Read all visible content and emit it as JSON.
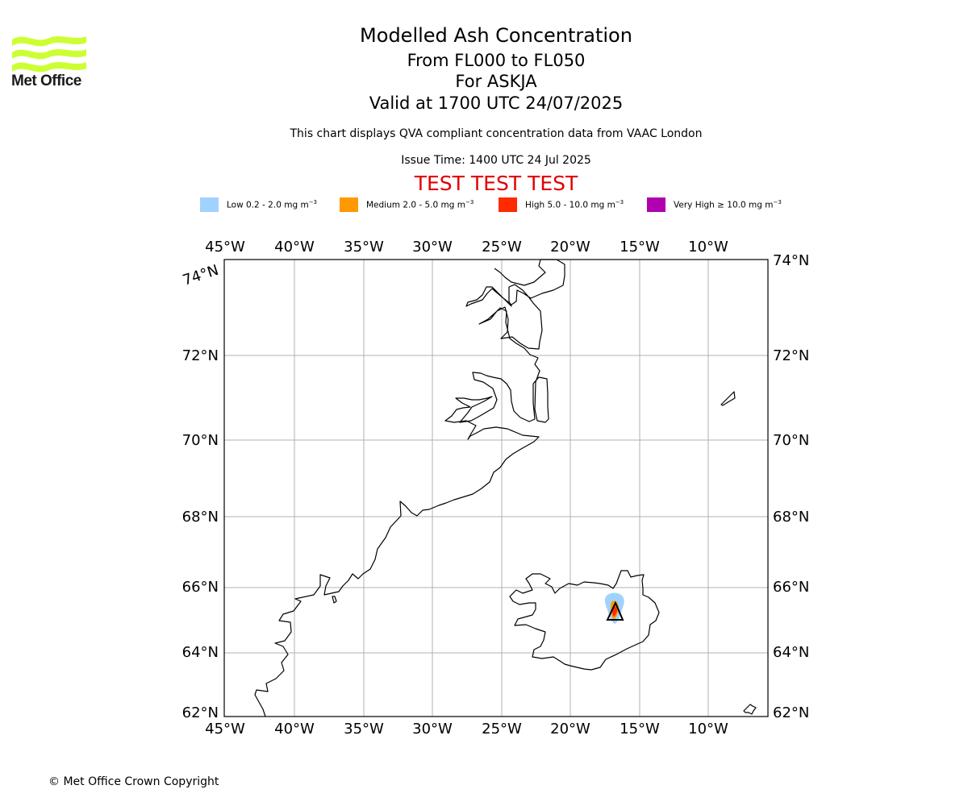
{
  "logo": {
    "brand": "Met Office",
    "color": "#ccff33"
  },
  "titles": {
    "main": "Modelled Ash Concentration",
    "levels": "From FL000 to FL050",
    "volcano": "For ASKJA",
    "valid": "Valid at 1700 UTC 24/07/2025"
  },
  "subtitle": "This chart displays QVA compliant concentration data from VAAC London",
  "issue_time": "Issue Time: 1400 UTC 24 Jul 2025",
  "test_banner": "TEST TEST TEST",
  "legend": [
    {
      "label": "Low 0.2 - 2.0 mg m",
      "unit_exp": "−3",
      "color": "#a0d2ff"
    },
    {
      "label": "Medium 2.0 - 5.0 mg m",
      "unit_exp": "−3",
      "color": "#ff9900"
    },
    {
      "label": "High 5.0 - 10.0 mg m",
      "unit_exp": "−3",
      "color": "#ff2a00"
    },
    {
      "label": "Very High  ≥  10.0 mg m",
      "unit_exp": "−3",
      "color": "#b000b0"
    }
  ],
  "map": {
    "lon_labels": [
      "45°W",
      "40°W",
      "35°W",
      "30°W",
      "25°W",
      "20°W",
      "15°W",
      "10°W"
    ],
    "lat_labels_left": [
      "62°N",
      "64°N",
      "66°N",
      "68°N",
      "70°N",
      "72°N",
      "74°N"
    ],
    "lat_labels_right": [
      "62°N",
      "64°N",
      "66°N",
      "68°N",
      "70°N",
      "72°N",
      "74°N"
    ],
    "volcano_name": "ASKJA",
    "volcano_icon": "volcano-triangle-icon"
  },
  "copyright": "© Met Office Crown Copyright"
}
